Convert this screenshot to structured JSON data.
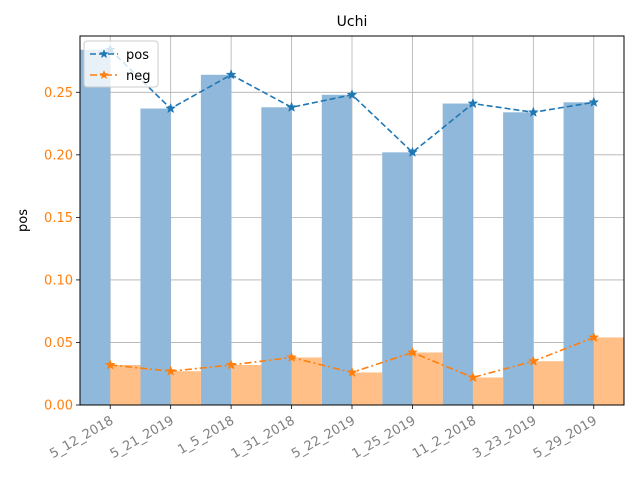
{
  "chart_data": {
    "type": "bar",
    "title": "Uchi",
    "xlabel": "",
    "ylabel": "pos",
    "categories": [
      "5_12_2018",
      "5_21_2019",
      "1_5_2018",
      "1_31_2018",
      "5_22_2019",
      "1_25_2019",
      "11_2_2018",
      "3_23_2019",
      "5_29_2019"
    ],
    "ylim": [
      0.0,
      0.295
    ],
    "yticks": [
      "0.00",
      "0.05",
      "0.10",
      "0.15",
      "0.20",
      "0.25"
    ],
    "grid": true,
    "legend_position": "top-left",
    "series": [
      {
        "name": "pos",
        "kind": "bar+line",
        "line_style": "dashed",
        "marker": "star",
        "color": "#1f77b4",
        "bar_color": "#8fb8db",
        "values": [
          0.284,
          0.237,
          0.264,
          0.238,
          0.248,
          0.202,
          0.241,
          0.234,
          0.242
        ]
      },
      {
        "name": "neg",
        "kind": "bar+line",
        "line_style": "dash-dot",
        "marker": "star",
        "color": "#ff7f0e",
        "bar_color": "#ffbf86",
        "values": [
          0.032,
          0.027,
          0.032,
          0.038,
          0.026,
          0.042,
          0.022,
          0.035,
          0.054
        ]
      }
    ],
    "tick_label_color_y": "#ff7f0e",
    "tick_label_color_x": "#808080"
  }
}
